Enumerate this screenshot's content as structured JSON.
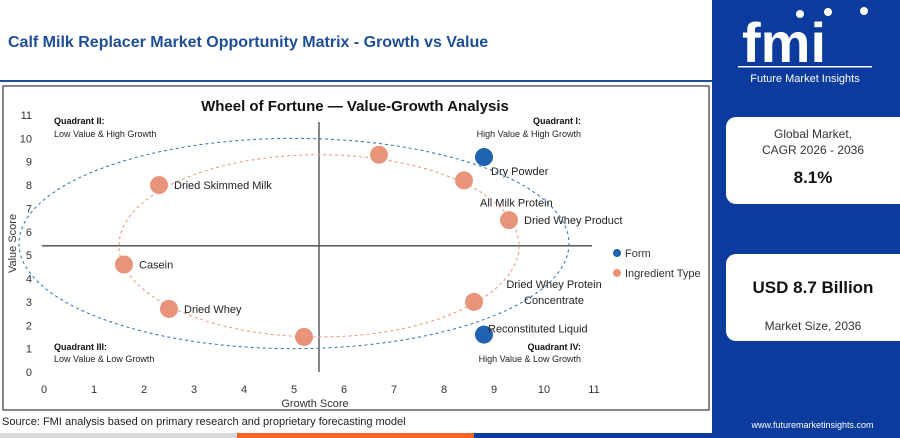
{
  "header": {
    "title": "Calf Milk Replacer Market Opportunity Matrix - Growth vs Value"
  },
  "brand": {
    "logo_text": "fmi",
    "logo_tagline": "Future Market Insights",
    "url": "www.futuremarketinsights.com"
  },
  "stats": {
    "cagr_label": "Global Market,\nCAGR 2026 - 2036",
    "cagr_value": "8.1%",
    "size_value": "USD 8.7 Billion",
    "size_label": "Market Size, 2036"
  },
  "source": "Source: FMI analysis based on primary research and proprietary forecasting model",
  "colors": {
    "form": "#1f63b0",
    "ingredient": "#e8947a",
    "brand_blue": "#0b3b9c",
    "accent_orange": "#f26522"
  },
  "chart_data": {
    "type": "scatter",
    "title": "Wheel of Fortune — Value-Growth Analysis",
    "xlabel": "Growth Score",
    "ylabel": "Value Score",
    "xlim": [
      0,
      11
    ],
    "ylim": [
      0,
      11
    ],
    "xticks": [
      0,
      1,
      2,
      3,
      4,
      5,
      6,
      7,
      8,
      9,
      10,
      11
    ],
    "yticks": [
      0,
      1,
      2,
      3,
      4,
      5,
      6,
      7,
      8,
      9,
      10,
      11
    ],
    "divider": {
      "x": 5.5,
      "y": 5.4
    },
    "quadrants": [
      {
        "name": "Quadrant I:",
        "desc": "High Value & High Growth",
        "position": "top-right"
      },
      {
        "name": "Quadrant II:",
        "desc": "Low Value & High Growth",
        "position": "top-left"
      },
      {
        "name": "Quadrant III:",
        "desc": "Low Value & Low Growth",
        "position": "bottom-left"
      },
      {
        "name": "Quadrant IV:",
        "desc": "High Value & Low Growth",
        "position": "bottom-right"
      }
    ],
    "legend": {
      "position": "right",
      "entries": [
        {
          "label": "Form",
          "series": "form"
        },
        {
          "label": "Ingredient Type",
          "series": "ingredient"
        }
      ]
    },
    "points": [
      {
        "label": "Dry Powder",
        "x": 8.8,
        "y": 9.2,
        "series": "form"
      },
      {
        "label": "Reconstituted Liquid",
        "x": 8.8,
        "y": 1.6,
        "series": "form"
      },
      {
        "label": "",
        "x": 6.7,
        "y": 9.3,
        "series": "ingredient"
      },
      {
        "label": "All Milk Protein",
        "x": 8.4,
        "y": 8.2,
        "series": "ingredient"
      },
      {
        "label": "Dried Whey Product",
        "x": 9.3,
        "y": 6.5,
        "series": "ingredient"
      },
      {
        "label": "Dried Whey Protein\nConcentrate",
        "x": 8.6,
        "y": 3.0,
        "series": "ingredient"
      },
      {
        "label": "",
        "x": 5.2,
        "y": 1.5,
        "series": "ingredient"
      },
      {
        "label": "Dried Whey",
        "x": 2.5,
        "y": 2.7,
        "series": "ingredient"
      },
      {
        "label": "Casein",
        "x": 1.6,
        "y": 4.6,
        "series": "ingredient"
      },
      {
        "label": "Dried Skimmed Milk",
        "x": 2.3,
        "y": 8.0,
        "series": "ingredient"
      }
    ]
  }
}
